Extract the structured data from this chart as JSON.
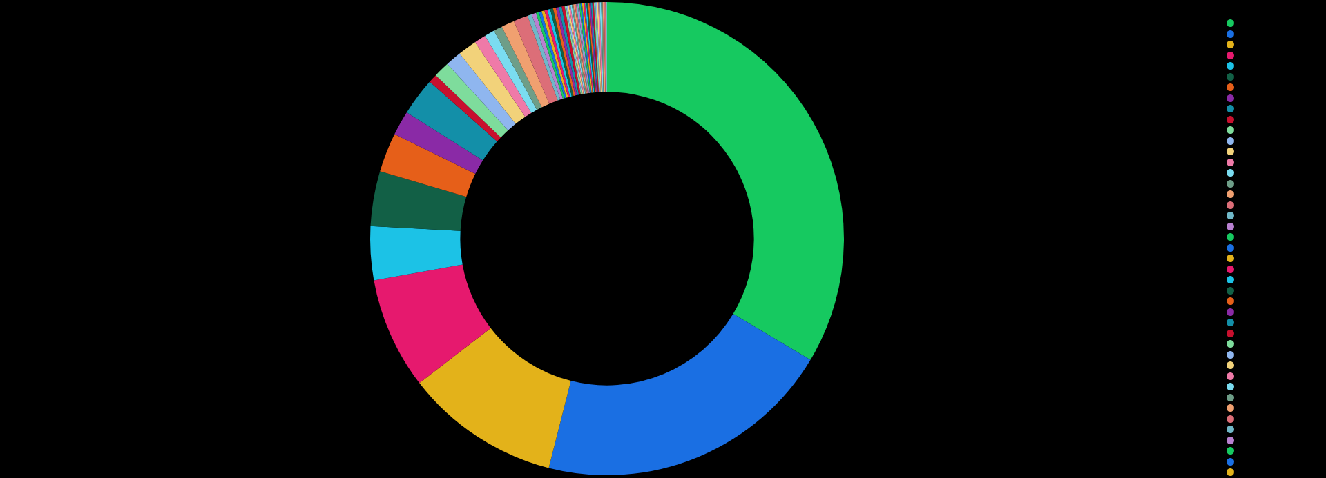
{
  "chart_data": {
    "type": "donut",
    "categories": [
      null,
      null,
      null,
      null,
      null,
      null,
      null,
      null,
      null,
      null,
      null,
      null,
      null,
      null,
      null,
      null,
      null,
      null,
      null,
      null,
      null,
      null,
      null,
      null,
      null,
      null,
      null,
      null,
      null,
      null,
      null,
      null,
      null,
      null,
      null,
      null,
      null,
      null,
      null,
      null,
      null,
      null,
      null,
      null,
      null,
      null,
      null,
      null,
      null,
      null,
      null,
      null,
      null,
      null,
      null,
      null,
      null,
      null,
      null
    ],
    "values": [
      33.9,
      20.6,
      10.7,
      7.7,
      3.7,
      3.8,
      2.7,
      1.7,
      2.6,
      0.6,
      1.1,
      1.1,
      1.3,
      0.8,
      0.7,
      0.6,
      0.9,
      1.0,
      0.3,
      0.3,
      0.2,
      0.2,
      0.2,
      0.2,
      0.2,
      0.2,
      0.2,
      0.2,
      0.2,
      0.2,
      0.1,
      0.1,
      0.1,
      0.1,
      0.1,
      0.1,
      0.1,
      0.1,
      0.1,
      0.1,
      0.1,
      0.1,
      0.1,
      0.1,
      0.1,
      0.1,
      0.1,
      0.1,
      0.1,
      0.1,
      0.1,
      0.1,
      0.1,
      0.1,
      0.1,
      0.1,
      0.1,
      0.1,
      0.1
    ],
    "colors": [
      "#16c960",
      "#1a6fe3",
      "#e3b21a",
      "#e6196e",
      "#1cc2e6",
      "#126046",
      "#e65f19",
      "#8a2aa6",
      "#138fa8",
      "#c8102e",
      "#7edc9c",
      "#8fb6ef",
      "#f2d27a",
      "#ef7aa8",
      "#7adcf0",
      "#6e9e88",
      "#f0a070",
      "#dc6e78",
      "#70b8c8",
      "#b880d0",
      "#16c960",
      "#1a6fe3",
      "#e3b21a",
      "#e6196e",
      "#1cc2e6",
      "#126046",
      "#e65f19",
      "#8a2aa6",
      "#138fa8",
      "#c8102e",
      "#7edc9c",
      "#8fb6ef",
      "#f2d27a",
      "#ef7aa8",
      "#7adcf0",
      "#6e9e88",
      "#f0a070",
      "#dc6e78",
      "#70b8c8",
      "#b880d0",
      "#16c960",
      "#1a6fe3",
      "#e3b21a",
      "#e6196e",
      "#1cc2e6",
      "#126046",
      "#e65f19",
      "#8a2aa6",
      "#138fa8",
      "#c8102e",
      "#7edc9c",
      "#8fb6ef",
      "#f2d27a",
      "#ef7aa8",
      "#7adcf0",
      "#6e9e88",
      "#f0a070",
      "#dc6e78",
      "#70b8c8"
    ]
  }
}
